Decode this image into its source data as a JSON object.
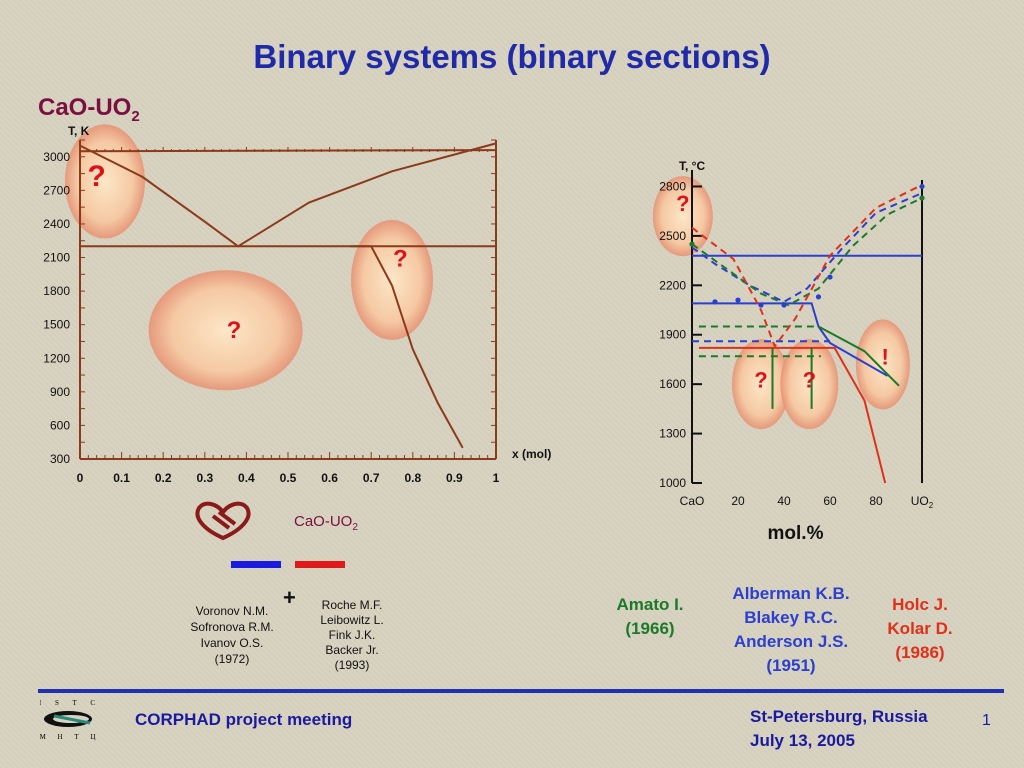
{
  "slide": {
    "title": "Binary systems (binary sections)",
    "system_label_main": "CaO-UO",
    "system_label_sub": "2",
    "icon_caption_main": "CaO-UO",
    "icon_caption_sub": "2",
    "plus": "+",
    "credits_left": [
      "Voronov N.M.",
      "Sofronova R.M.",
      "Ivanov O.S.",
      "(1972)"
    ],
    "credits_right": [
      "Roche M.F.",
      "Leibowitz L.",
      "Fink J.K.",
      "Backer Jr.",
      "(1993)"
    ],
    "ref_amato": [
      "Amato I.",
      "(1966)"
    ],
    "ref_alberman": [
      "Alberman K.B.",
      "Blakey R.C.",
      "Anderson J.S.",
      "(1951)"
    ],
    "ref_holc": [
      "Holc J.",
      "Kolar D.",
      "(1986)"
    ],
    "footer_meeting": "CORPHAD project meeting",
    "footer_place": [
      "St-Petersburg, Russia",
      "July 13, 2005"
    ],
    "page_number": "1",
    "logo_top": "I S T C",
    "logo_bottom": "М Н Т Ц",
    "colors": {
      "title": "#1f2aa8",
      "blue": "#2b3fd0",
      "green": "#1a7a2a",
      "red": "#e0301a",
      "brown": "#8b3a1a"
    }
  },
  "chart_data": [
    {
      "type": "line",
      "ylabel": "T, K",
      "xlabel": "x (mol)",
      "xlim": [
        0,
        1
      ],
      "ylim": [
        300,
        3150
      ],
      "x_ticks": [
        "0",
        "0.1",
        "0.2",
        "0.3",
        "0.4",
        "0.5",
        "0.6",
        "0.7",
        "0.8",
        "0.9",
        "1"
      ],
      "y_ticks": [
        "300",
        "600",
        "900",
        "1200",
        "1500",
        "1800",
        "2100",
        "2400",
        "2700",
        "3000"
      ],
      "series": [
        {
          "values": [
            [
              0,
              3100
            ],
            [
              0.15,
              2820
            ],
            [
              0.3,
              2420
            ],
            [
              0.38,
              2200
            ],
            [
              0.55,
              2590
            ],
            [
              0.75,
              2870
            ],
            [
              1.0,
              3120
            ]
          ]
        },
        {
          "values": [
            [
              0,
              2200
            ],
            [
              1.0,
              2200
            ]
          ]
        },
        {
          "values": [
            [
              0,
              3050
            ],
            [
              1.0,
              3060
            ]
          ]
        },
        {
          "values": [
            [
              0.7,
              2200
            ],
            [
              0.75,
              1850
            ],
            [
              0.8,
              1280
            ],
            [
              0.86,
              800
            ],
            [
              0.92,
              400
            ]
          ]
        },
        {
          "values": [
            [
              0.65,
              2200
            ],
            [
              0.7,
              2200
            ]
          ]
        }
      ],
      "annotations": [
        "?",
        "?",
        "?"
      ]
    },
    {
      "type": "line",
      "ylabel": "T, °C",
      "xlabel": "mol.%",
      "xlim": [
        0,
        100
      ],
      "ylim": [
        1000,
        2900
      ],
      "x_ticks": [
        "CaO",
        "20",
        "40",
        "60",
        "80",
        "UO2"
      ],
      "y_ticks": [
        "1000",
        "1300",
        "1600",
        "1900",
        "2200",
        "2500",
        "2800"
      ],
      "series": [
        {
          "color": "#2b3fd0",
          "style": "solid",
          "values": [
            [
              0,
              2090
            ],
            [
              25,
              2090
            ],
            [
              52,
              2090
            ],
            [
              55,
              1950
            ],
            [
              60,
              1850
            ],
            [
              85,
              1650
            ]
          ]
        },
        {
          "color": "#2b3fd0",
          "style": "dashed",
          "values": [
            [
              0,
              2430
            ],
            [
              10,
              2330
            ],
            [
              25,
              2200
            ],
            [
              40,
              2100
            ],
            [
              50,
              2180
            ],
            [
              65,
              2420
            ],
            [
              80,
              2640
            ],
            [
              100,
              2760
            ]
          ]
        },
        {
          "color": "#2b3fd0",
          "style": "dashed",
          "values": [
            [
              0,
              1860
            ],
            [
              60,
              1860
            ]
          ]
        },
        {
          "color": "#2b3fd0",
          "style": "solid",
          "values": [
            [
              0,
              2380
            ],
            [
              100,
              2380
            ]
          ]
        },
        {
          "color": "#1a7a2a",
          "style": "dashed",
          "values": [
            [
              0,
              2450
            ],
            [
              15,
              2300
            ],
            [
              30,
              2150
            ],
            [
              42,
              2080
            ],
            [
              55,
              2180
            ],
            [
              70,
              2440
            ],
            [
              85,
              2630
            ],
            [
              100,
              2730
            ]
          ]
        },
        {
          "color": "#1a7a2a",
          "style": "dashed",
          "values": [
            [
              3,
              1950
            ],
            [
              55,
              1950
            ]
          ]
        },
        {
          "color": "#1a7a2a",
          "style": "solid",
          "values": [
            [
              55,
              1950
            ],
            [
              75,
              1800
            ],
            [
              90,
              1590
            ]
          ]
        },
        {
          "color": "#1a7a2a",
          "style": "dashed",
          "values": [
            [
              3,
              1770
            ],
            [
              56,
              1770
            ]
          ]
        },
        {
          "color": "#e0301a",
          "style": "dashed",
          "values": [
            [
              0,
              2550
            ],
            [
              18,
              2360
            ],
            [
              30,
              2050
            ],
            [
              36,
              1830
            ],
            [
              45,
              2000
            ],
            [
              60,
              2380
            ],
            [
              80,
              2670
            ],
            [
              100,
              2810
            ]
          ]
        },
        {
          "color": "#e0301a",
          "style": "solid",
          "values": [
            [
              3,
              1820
            ],
            [
              62,
              1820
            ],
            [
              75,
              1500
            ],
            [
              84,
              1000
            ]
          ]
        },
        {
          "color": "#1a7a2a",
          "style": "solid",
          "values": [
            [
              35,
              1820
            ],
            [
              35,
              1450
            ]
          ]
        },
        {
          "color": "#1a7a2a",
          "style": "solid",
          "values": [
            [
              52,
              1820
            ],
            [
              52,
              1450
            ]
          ]
        }
      ],
      "annotations": [
        "?",
        "?",
        "?",
        "!"
      ]
    }
  ]
}
